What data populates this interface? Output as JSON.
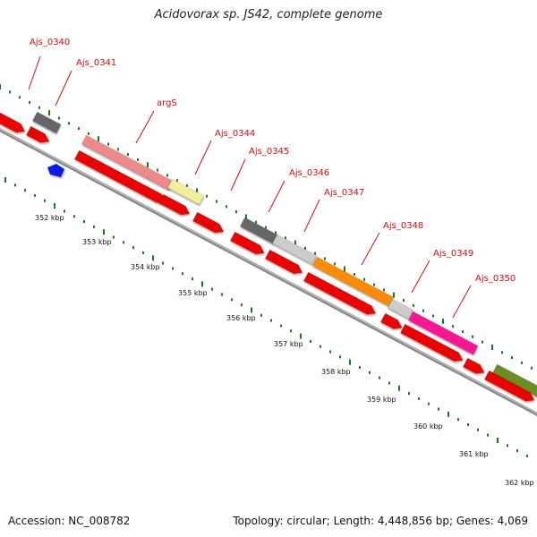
{
  "title": "Acidovorax sp. JS42, complete genome",
  "footer": {
    "accession": "Accession: NC_008782",
    "topology": "Topology: circular; Length: 4,448,856 bp; Genes: 4,069"
  },
  "colors": {
    "backbone": "#8a8a8a",
    "tick": "#1a7a1a",
    "label": "#d01010",
    "cds": "#ee0000"
  },
  "kbp_labels": [
    "352 kbp",
    "353 kbp",
    "354 kbp",
    "355 kbp",
    "356 kbp",
    "357 kbp",
    "358 kbp",
    "359 kbp",
    "360 kbp",
    "361 kbp",
    "362 kbp"
  ],
  "genes": [
    {
      "name": "Ajs_0340",
      "color": "#666666"
    },
    {
      "name": "Ajs_0341",
      "color": "#ee0000"
    },
    {
      "name": "argS",
      "color": "#f08a8a"
    },
    {
      "name": "Ajs_0344",
      "color": "#f2ee9a"
    },
    {
      "name": "Ajs_0345",
      "color": "#ee0000"
    },
    {
      "name": "Ajs_0346",
      "color": "#666666"
    },
    {
      "name": "Ajs_0347",
      "color": "#cccccc"
    },
    {
      "name": "Ajs_0348",
      "color": "#ff8c00"
    },
    {
      "name": "Ajs_0349",
      "color": "#cccccc"
    },
    {
      "name": "Ajs_0350",
      "color": "#ff1493"
    }
  ]
}
